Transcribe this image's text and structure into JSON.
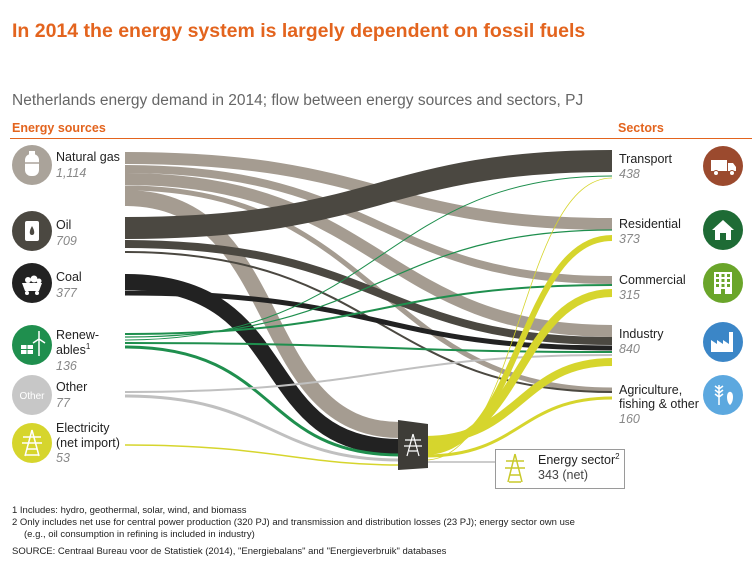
{
  "title": "In 2014 the energy system is largely dependent on fossil fuels",
  "subtitle": "Netherlands energy demand in 2014; flow between energy sources and sectors, PJ",
  "sources_header": "Energy sources",
  "sectors_header": "Sectors",
  "sources": [
    {
      "name": "Natural gas",
      "value": "1,114",
      "icon": "gas-tank-icon"
    },
    {
      "name": "Oil",
      "value": "709",
      "icon": "oil-barrel-icon"
    },
    {
      "name": "Coal",
      "value": "377",
      "icon": "coal-cart-icon"
    },
    {
      "name_line1": "Renew-",
      "name_line2": "ables",
      "sup": "1",
      "value": "136",
      "icon": "solar-wind-icon"
    },
    {
      "name": "Other",
      "value": "77",
      "icon_label": "Other",
      "icon": "other-icon"
    },
    {
      "name_line1": "Electricity",
      "name_line2": "(net import)",
      "value": "53",
      "icon": "power-pylon-icon"
    }
  ],
  "sectors": [
    {
      "name": "Transport",
      "value": "438",
      "icon": "truck-icon"
    },
    {
      "name": "Residential",
      "value": "373",
      "icon": "house-icon"
    },
    {
      "name": "Commercial",
      "value": "315",
      "icon": "office-building-icon"
    },
    {
      "name": "Industry",
      "value": "840",
      "icon": "factory-icon"
    },
    {
      "name_line1": "Agriculture,",
      "name_line2": "fishing & other",
      "value": "160",
      "icon": "agriculture-icon"
    }
  ],
  "energy_sector": {
    "name": "Energy sector",
    "sup": "2",
    "value": "343 (net)",
    "icon": "power-pylon-icon"
  },
  "colors": {
    "accent": "#e3641e",
    "natural_gas": "#a59c91",
    "oil": "#4b4841",
    "coal": "#222222",
    "renewables": "#1f8f4e",
    "other": "#c0c0c0",
    "electricity": "#d6d52d",
    "transport_icon": "#9b4a2e",
    "residential_icon": "#1e6b35",
    "commercial_icon": "#6aa52a",
    "industry_icon": "#3b86c7",
    "agriculture_icon": "#5ca8df"
  },
  "footnotes": [
    "1 Includes: hydro, geothermal, solar, wind, and biomass",
    "2 Only includes net use for central power production (320 PJ) and transmission and distribution losses (23 PJ); energy sector own use",
    "(e.g., oil consumption in refining is included in industry)",
    "SOURCE: Centraal Bureau voor de Statistiek (2014), \"Energiebalans\" and \"Energieverbruik\" databases"
  ]
}
